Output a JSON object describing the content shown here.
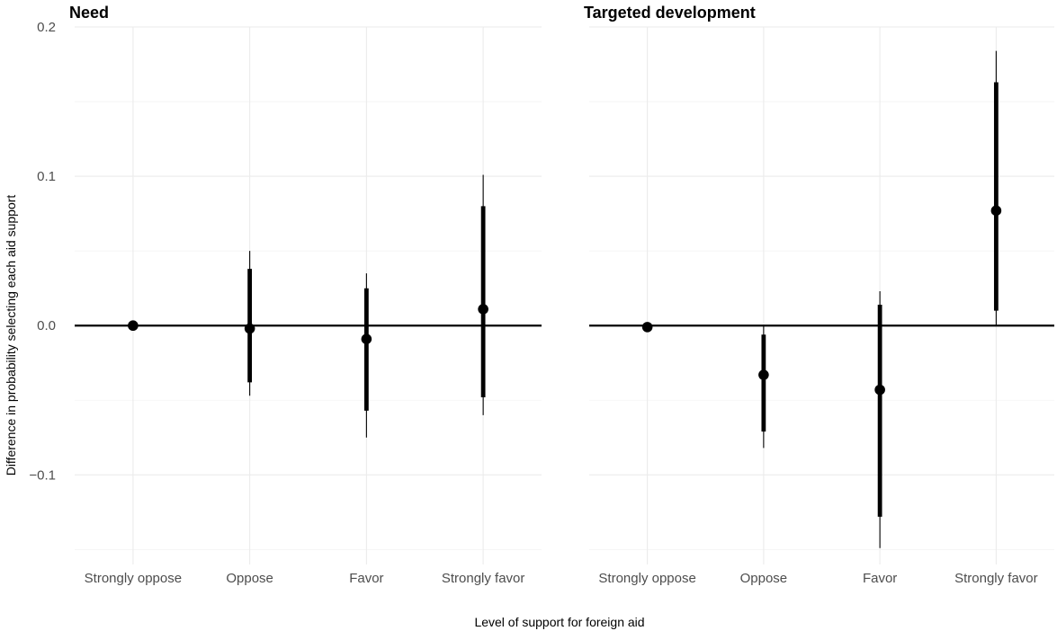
{
  "chart_data": {
    "type": "point-range",
    "xlabel": "Level of support for foreign aid",
    "ylabel": "Difference in probability selecting each aid support",
    "ylim": [
      -0.16,
      0.2
    ],
    "yticks": [
      -0.1,
      0.0,
      0.1,
      0.2
    ],
    "ytick_labels": [
      "−0.1",
      "0.0",
      "0.1",
      "0.2"
    ],
    "categories": [
      "Strongly oppose",
      "Oppose",
      "Favor",
      "Strongly favor"
    ],
    "reference_line": 0,
    "grid": true,
    "panels": [
      {
        "title": "Need",
        "points": [
          {
            "category": "Strongly oppose",
            "estimate": 0.0,
            "ci_low_90": 0.0,
            "ci_high_90": 0.0,
            "ci_low_95": 0.0,
            "ci_high_95": 0.0
          },
          {
            "category": "Oppose",
            "estimate": -0.002,
            "ci_low_90": -0.038,
            "ci_high_90": 0.038,
            "ci_low_95": -0.047,
            "ci_high_95": 0.05
          },
          {
            "category": "Favor",
            "estimate": -0.009,
            "ci_low_90": -0.057,
            "ci_high_90": 0.025,
            "ci_low_95": -0.075,
            "ci_high_95": 0.035
          },
          {
            "category": "Strongly favor",
            "estimate": 0.011,
            "ci_low_90": -0.048,
            "ci_high_90": 0.08,
            "ci_low_95": -0.06,
            "ci_high_95": 0.101
          }
        ]
      },
      {
        "title": "Targeted development",
        "points": [
          {
            "category": "Strongly oppose",
            "estimate": -0.001,
            "ci_low_90": -0.001,
            "ci_high_90": -0.001,
            "ci_low_95": -0.001,
            "ci_high_95": -0.001
          },
          {
            "category": "Oppose",
            "estimate": -0.033,
            "ci_low_90": -0.071,
            "ci_high_90": -0.006,
            "ci_low_95": -0.082,
            "ci_high_95": 0.0
          },
          {
            "category": "Favor",
            "estimate": -0.043,
            "ci_low_90": -0.128,
            "ci_high_90": 0.014,
            "ci_low_95": -0.149,
            "ci_high_95": 0.023
          },
          {
            "category": "Strongly favor",
            "estimate": 0.077,
            "ci_low_90": 0.01,
            "ci_high_90": 0.163,
            "ci_low_95": 0.0,
            "ci_high_95": 0.184
          }
        ]
      }
    ]
  }
}
